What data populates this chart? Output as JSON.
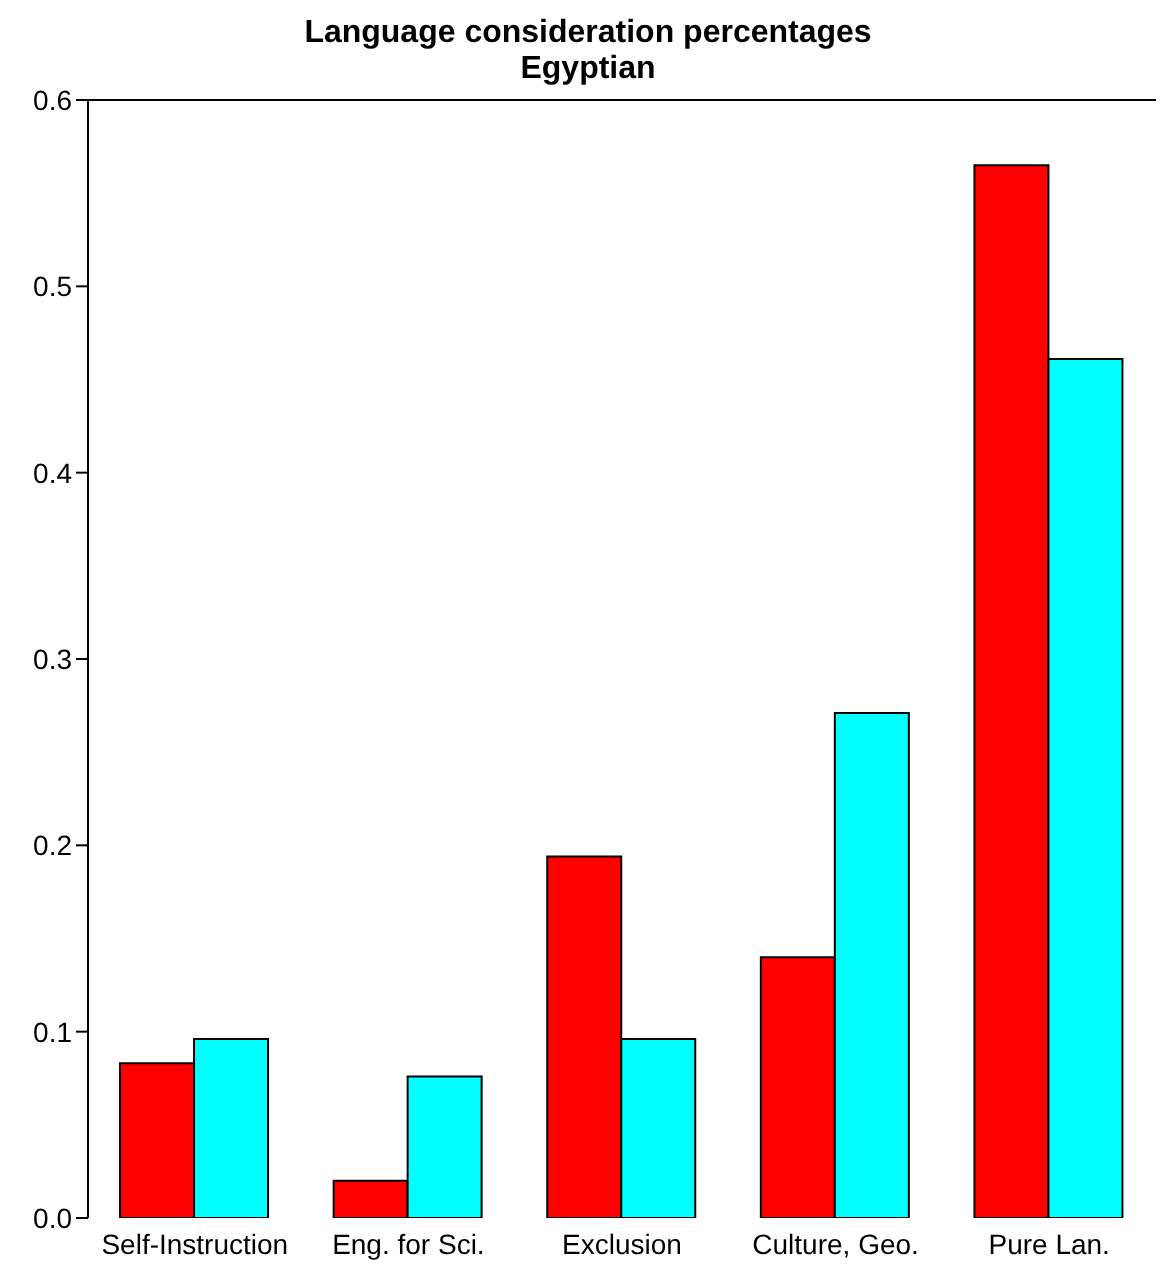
{
  "chart_data": {
    "type": "bar",
    "title": "Language consideration percentages",
    "subtitle": "Egyptian",
    "categories": [
      "Self-Instruction",
      "Eng. for Sci.",
      "Exclusion",
      "Culture, Geo.",
      "Pure Lan."
    ],
    "series": [
      {
        "color": "#ff0000",
        "values": [
          0.083,
          0.02,
          0.194,
          0.14,
          0.565
        ]
      },
      {
        "color": "#00ffff",
        "values": [
          0.096,
          0.076,
          0.096,
          0.271,
          0.461
        ]
      }
    ],
    "ylim": [
      0,
      0.6
    ],
    "yticks": [
      {
        "value": 0,
        "label": "0.0"
      },
      0.1,
      0.2,
      0.3,
      0.4,
      0.5,
      0.6
    ],
    "grid": false,
    "legend": false
  }
}
